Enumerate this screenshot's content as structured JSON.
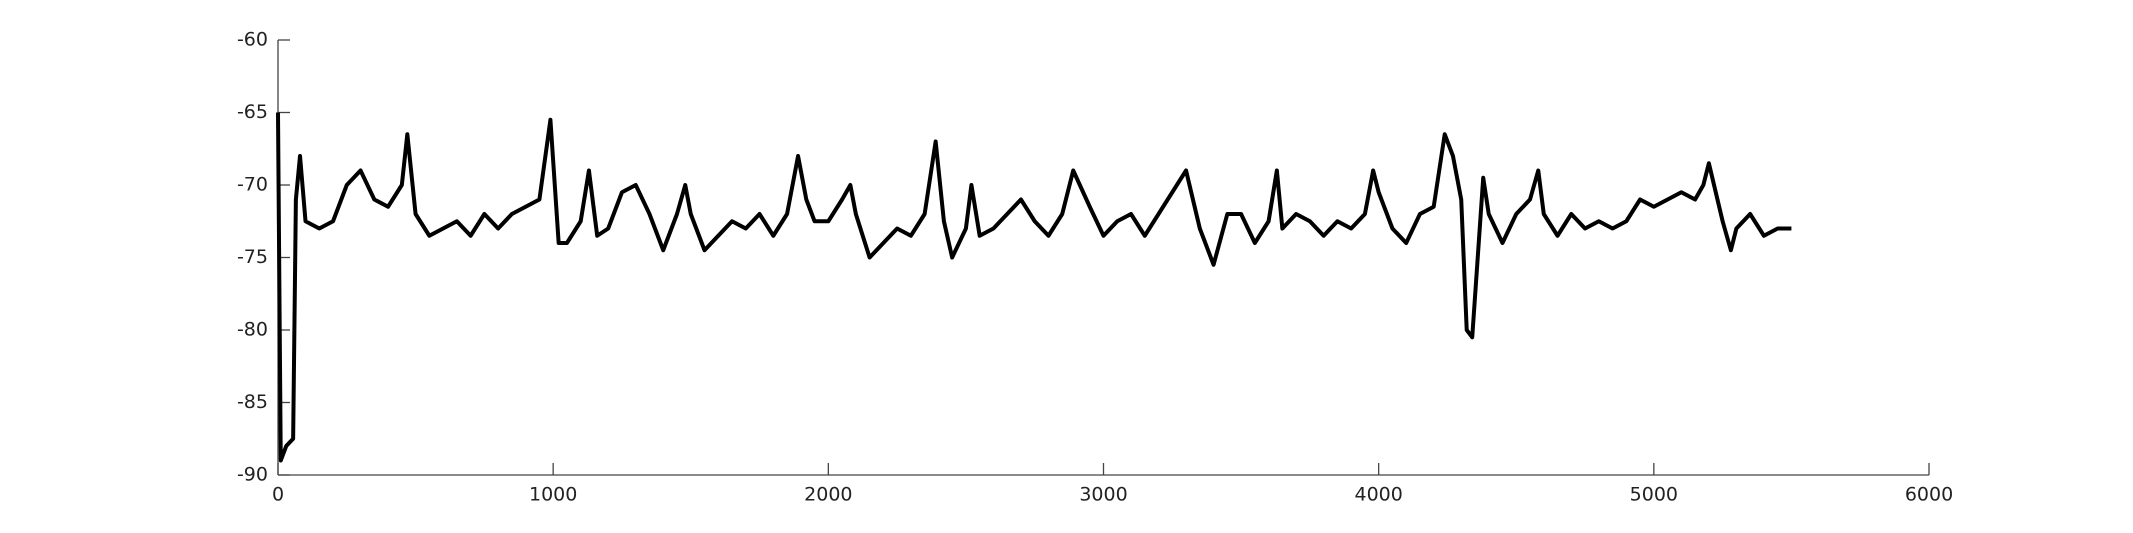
{
  "chart_data": {
    "type": "line",
    "x": [
      0,
      10,
      30,
      55,
      65,
      80,
      100,
      150,
      200,
      250,
      300,
      350,
      400,
      450,
      470,
      500,
      550,
      600,
      650,
      700,
      750,
      800,
      850,
      900,
      950,
      990,
      1020,
      1050,
      1100,
      1130,
      1160,
      1200,
      1250,
      1300,
      1350,
      1400,
      1450,
      1480,
      1500,
      1550,
      1600,
      1650,
      1700,
      1750,
      1800,
      1850,
      1890,
      1920,
      1950,
      2000,
      2050,
      2080,
      2100,
      2150,
      2200,
      2250,
      2300,
      2350,
      2390,
      2420,
      2450,
      2500,
      2520,
      2550,
      2600,
      2650,
      2700,
      2750,
      2800,
      2850,
      2890,
      2950,
      3000,
      3050,
      3100,
      3150,
      3200,
      3250,
      3300,
      3350,
      3400,
      3450,
      3500,
      3550,
      3600,
      3630,
      3650,
      3700,
      3750,
      3800,
      3850,
      3900,
      3950,
      3980,
      4000,
      4050,
      4100,
      4150,
      4200,
      4240,
      4270,
      4300,
      4320,
      4340,
      4360,
      4380,
      4400,
      4450,
      4500,
      4550,
      4580,
      4600,
      4650,
      4700,
      4750,
      4800,
      4850,
      4900,
      4950,
      5000,
      5050,
      5100,
      5150,
      5180,
      5200,
      5250,
      5280,
      5300,
      5350,
      5400,
      5450,
      5500
    ],
    "series": [
      {
        "color": "#000000",
        "values": [
          -65,
          -89,
          -88,
          -87.5,
          -71,
          -68,
          -72.5,
          -73,
          -72.5,
          -70,
          -69,
          -71,
          -71.5,
          -70,
          -66.5,
          -72,
          -73.5,
          -73,
          -72.5,
          -73.5,
          -72,
          -73,
          -72,
          -71.5,
          -71,
          -65.5,
          -74,
          -74,
          -72.5,
          -69,
          -73.5,
          -73,
          -70.5,
          -70,
          -72,
          -74.5,
          -72,
          -70,
          -72,
          -74.5,
          -73.5,
          -72.5,
          -73,
          -72,
          -73.5,
          -72,
          -68,
          -71,
          -72.5,
          -72.5,
          -71,
          -70,
          -72,
          -75,
          -74,
          -73,
          -73.5,
          -72,
          -67,
          -72.5,
          -75,
          -73,
          -70,
          -73.5,
          -73,
          -72,
          -71,
          -72.5,
          -73.5,
          -72,
          -69,
          -71.5,
          -73.5,
          -72.5,
          -72,
          -73.5,
          -72,
          -70.5,
          -69,
          -73,
          -75.5,
          -72,
          -72,
          -74,
          -72.5,
          -69,
          -73,
          -72,
          -72.5,
          -73.5,
          -72.5,
          -73,
          -72,
          -69,
          -70.5,
          -73,
          -74,
          -72,
          -71.5,
          -66.5,
          -68,
          -71,
          -80,
          -80.5,
          -75,
          -69.5,
          -72,
          -74,
          -72,
          -71,
          -69,
          -72,
          -73.5,
          -72,
          -73,
          -72.5,
          -73,
          -72.5,
          -71,
          -71.5,
          -71,
          -70.5,
          -71,
          -70,
          -68.5,
          -72.5,
          -74.5,
          -73,
          -72,
          -73.5,
          -73,
          -73
        ]
      }
    ],
    "xlim": [
      0,
      6000
    ],
    "xticks": [
      0,
      1000,
      2000,
      3000,
      4000,
      5000,
      6000
    ],
    "ylim": [
      -90,
      -60
    ],
    "yticks": [
      -60,
      -65,
      -70,
      -75,
      -80,
      -85,
      -90
    ]
  }
}
